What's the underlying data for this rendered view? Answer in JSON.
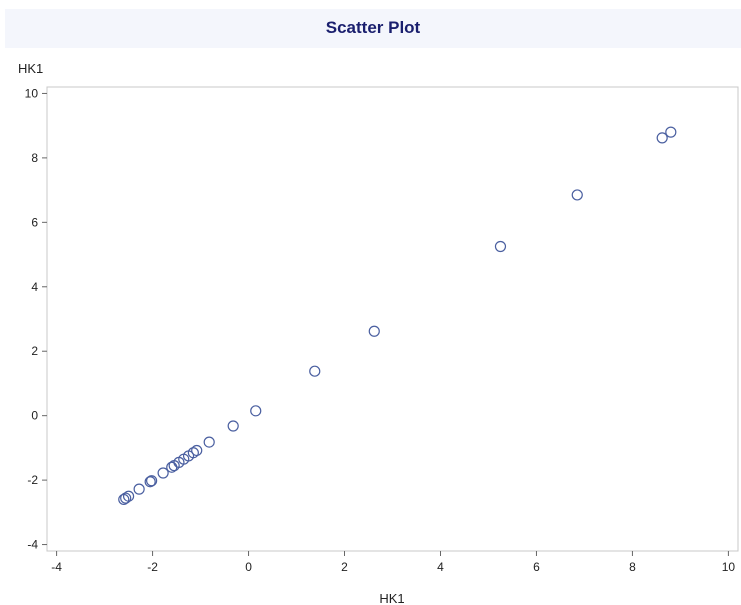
{
  "chart_data": {
    "type": "scatter",
    "title": "Scatter Plot",
    "xlabel": "HK1",
    "ylabel": "HK1",
    "xlim": [
      -4.2,
      10.2
    ],
    "ylim": [
      -4.2,
      10.2
    ],
    "xticks": [
      -4,
      -2,
      0,
      2,
      4,
      6,
      8,
      10
    ],
    "yticks": [
      -4,
      -2,
      0,
      2,
      4,
      6,
      8,
      10
    ],
    "grid": false,
    "marker": "open-circle",
    "marker_color": "#4a5fa0",
    "title_color": "#1a1f6e",
    "x": [
      -2.6,
      -2.56,
      -2.5,
      -2.28,
      -2.05,
      -2.02,
      -1.78,
      -1.6,
      -1.55,
      -1.45,
      -1.35,
      -1.25,
      -1.15,
      -1.08,
      -0.82,
      -0.32,
      0.15,
      1.38,
      2.62,
      5.25,
      6.85,
      8.62,
      8.8
    ],
    "y": [
      -2.6,
      -2.56,
      -2.5,
      -2.28,
      -2.05,
      -2.02,
      -1.78,
      -1.6,
      -1.55,
      -1.45,
      -1.35,
      -1.25,
      -1.15,
      -1.08,
      -0.82,
      -0.32,
      0.15,
      1.38,
      2.62,
      5.25,
      6.85,
      8.62,
      8.8
    ]
  }
}
